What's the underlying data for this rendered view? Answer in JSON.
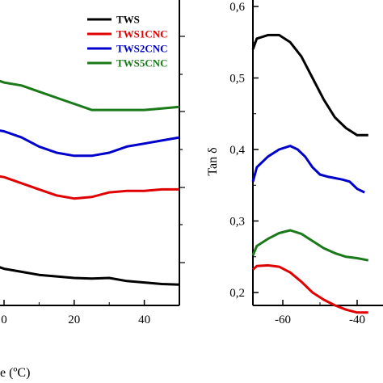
{
  "chart_data": [
    {
      "type": "line",
      "xlabel_partial": "e (ºC)",
      "ylabel": "",
      "xlim": [
        -25,
        50
      ],
      "ylim": [
        0,
        1
      ],
      "x_ticks": [
        0,
        20,
        40
      ],
      "x_tick_labels": [
        "0",
        "20",
        "40"
      ],
      "legend": {
        "position": "top-right",
        "entries": [
          "TWS",
          "TWS1CNC",
          "TWS2CNC",
          "TWS5CNC"
        ]
      },
      "grid": false,
      "series": [
        {
          "name": "TWS",
          "color": "#000000",
          "x": [
            -25,
            -5,
            0,
            5,
            10,
            15,
            20,
            25,
            30,
            35,
            40,
            45,
            50
          ],
          "y": [
            0.16,
            0.14,
            0.12,
            0.11,
            0.1,
            0.095,
            0.09,
            0.088,
            0.09,
            0.08,
            0.075,
            0.07,
            0.068
          ]
        },
        {
          "name": "TWS1CNC",
          "color": "#e00000",
          "x": [
            -25,
            -5,
            0,
            5,
            10,
            15,
            20,
            25,
            30,
            35,
            40,
            45,
            50
          ],
          "y": [
            0.46,
            0.43,
            0.42,
            0.4,
            0.38,
            0.36,
            0.35,
            0.355,
            0.37,
            0.375,
            0.375,
            0.38,
            0.38
          ]
        },
        {
          "name": "TWS2CNC",
          "color": "#0000cc",
          "x": [
            -25,
            -5,
            0,
            5,
            10,
            15,
            20,
            25,
            30,
            35,
            40,
            45,
            50
          ],
          "y": [
            0.61,
            0.58,
            0.57,
            0.55,
            0.52,
            0.5,
            0.49,
            0.49,
            0.5,
            0.52,
            0.53,
            0.54,
            0.55
          ]
        },
        {
          "name": "TWS5CNC",
          "color": "#1a7a1a",
          "x": [
            -25,
            -5,
            0,
            5,
            10,
            15,
            20,
            25,
            30,
            35,
            40,
            45,
            50
          ],
          "y": [
            0.8,
            0.75,
            0.73,
            0.72,
            0.7,
            0.68,
            0.66,
            0.64,
            0.64,
            0.64,
            0.64,
            0.645,
            0.65
          ]
        }
      ]
    },
    {
      "type": "line",
      "ylabel": "Tan δ",
      "xlim": [
        -70,
        -35
      ],
      "ylim": [
        0.17,
        0.6
      ],
      "x_ticks": [
        -60,
        -40
      ],
      "x_tick_labels": [
        "-60",
        "-40"
      ],
      "y_ticks": [
        0.2,
        0.3,
        0.4,
        0.5,
        0.6
      ],
      "y_tick_labels": [
        "0,2",
        "0,3",
        "0,4",
        "0,5",
        "0,6"
      ],
      "grid": false,
      "series": [
        {
          "name": "TWS",
          "color": "#000000",
          "x": [
            -70,
            -67,
            -64,
            -61,
            -58,
            -55,
            -52,
            -49,
            -46,
            -43,
            -40,
            -37
          ],
          "y": [
            0.54,
            0.555,
            0.56,
            0.56,
            0.55,
            0.53,
            0.5,
            0.47,
            0.445,
            0.43,
            0.42,
            0.42
          ]
        },
        {
          "name": "TWS2CNC",
          "color": "#0000cc",
          "x": [
            -70,
            -67,
            -64,
            -61,
            -58,
            -56,
            -54,
            -52,
            -50,
            -48,
            -46,
            -44,
            -42,
            -40,
            -38
          ],
          "y": [
            0.355,
            0.375,
            0.39,
            0.4,
            0.405,
            0.4,
            0.39,
            0.375,
            0.365,
            0.362,
            0.36,
            0.358,
            0.355,
            0.345,
            0.34
          ]
        },
        {
          "name": "TWS5CNC",
          "color": "#1a7a1a",
          "x": [
            -70,
            -67,
            -64,
            -61,
            -58,
            -55,
            -52,
            -49,
            -46,
            -43,
            -40,
            -37
          ],
          "y": [
            0.252,
            0.265,
            0.275,
            0.283,
            0.287,
            0.282,
            0.272,
            0.262,
            0.255,
            0.25,
            0.248,
            0.245
          ]
        },
        {
          "name": "TWS1CNC",
          "color": "#e00000",
          "x": [
            -70,
            -67,
            -64,
            -61,
            -58,
            -55,
            -52,
            -49,
            -46,
            -43,
            -40,
            -37
          ],
          "y": [
            0.232,
            0.237,
            0.238,
            0.236,
            0.228,
            0.215,
            0.2,
            0.19,
            0.182,
            0.176,
            0.172,
            0.172
          ]
        }
      ]
    }
  ]
}
